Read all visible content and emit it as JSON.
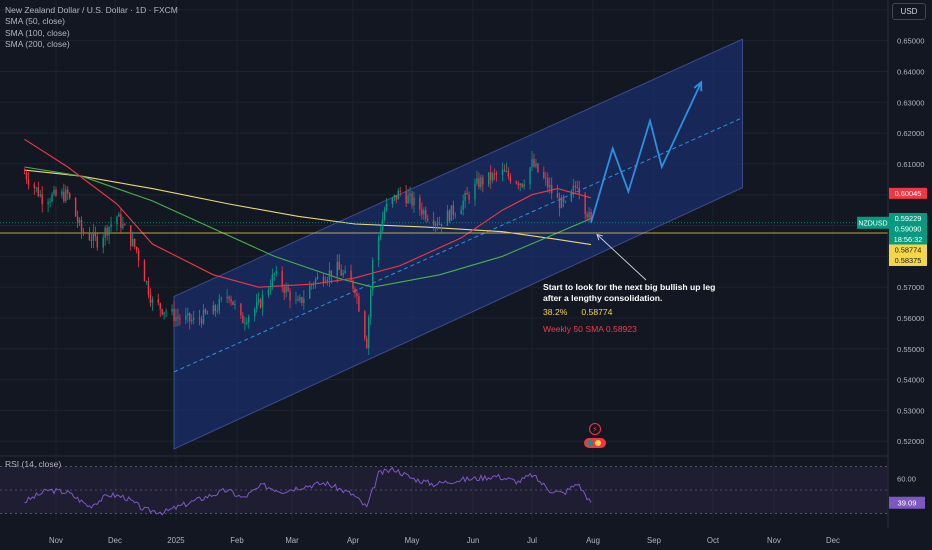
{
  "header": {
    "title": "New Zealand Dollar / U.S. Dollar · 1D · FXCM",
    "indicators": [
      "SMA (50, close)",
      "SMA (100, close)",
      "SMA (200, close)"
    ],
    "currency_button": "USD"
  },
  "rsi": {
    "label": "RSI (14, close)",
    "scale_label": "60.00",
    "value_label": "39.09"
  },
  "annotations": {
    "note_line1": "Start to look for the next big bullish up leg",
    "note_line2": "after a lengthy consolidation.",
    "fib_level": "38.2%",
    "fib_value": "0.58774",
    "weekly_sma": "Weekly 50 SMA  0.58923"
  },
  "price_tags": {
    "symbol": "NZDUSD",
    "tags": [
      {
        "text": "0.60045",
        "bg": "#f23645",
        "fg": "#ffffff",
        "price": 0.60045
      },
      {
        "text": "0.59229",
        "bg": "#089981",
        "fg": "#ffffff",
        "price": 0.59229
      },
      {
        "text": "0.59090",
        "bg": "#089981",
        "fg": "#ffffff",
        "price": 0.5909
      },
      {
        "text": "18:56:32",
        "bg": "#089981",
        "fg": "#ffffff",
        "price": 0.5889
      },
      {
        "text": "0.58774",
        "bg": "#f5d645",
        "fg": "#131722",
        "price": 0.58774
      },
      {
        "text": "0.58375",
        "bg": "#f5d645",
        "fg": "#131722",
        "price": 0.58375
      }
    ]
  },
  "colors": {
    "background": "#131722",
    "grid": "#1e222d",
    "up_candle": "#089981",
    "down_candle": "#f23645",
    "channel_fill": "#1a2f6b",
    "projection": "#2f8fe0",
    "sma50": "#f23645",
    "sma100": "#4caf50",
    "sma200": "#e8d77a",
    "rsi_line": "#7e57c2",
    "axis_text": "#b2b5be"
  },
  "chart_data": {
    "type": "candlestick",
    "symbol": "NZDUSD",
    "timeframe": "1D",
    "y_axis": {
      "ticks": [
        0.52,
        0.53,
        0.54,
        0.55,
        0.56,
        0.57,
        0.58,
        0.59,
        0.6,
        0.61,
        0.62,
        0.63,
        0.64,
        0.65,
        0.66
      ],
      "tick_labels": [
        "0.52000",
        "0.53000",
        "0.54000",
        "0.55000",
        "0.56000",
        "0.57000",
        "0.58000",
        "0.59000",
        "0.60000",
        "0.61000",
        "0.62000",
        "0.63000",
        "0.64000",
        "0.65000",
        "0.66000"
      ],
      "range": [
        0.5165,
        0.6632
      ]
    },
    "x_axis": {
      "labels": [
        "Nov",
        "Dec",
        "2025",
        "Feb",
        "Mar",
        "Apr",
        "May",
        "Jun",
        "Jul",
        "Aug",
        "Sep",
        "Oct",
        "Nov",
        "Dec"
      ]
    },
    "price_path": [
      [
        "2024-10-16",
        0.607
      ],
      [
        "2024-10-25",
        0.599
      ],
      [
        "2024-11-07",
        0.6
      ],
      [
        "2024-11-14",
        0.588
      ],
      [
        "2024-11-22",
        0.585
      ],
      [
        "2024-12-02",
        0.593
      ],
      [
        "2024-12-12",
        0.582
      ],
      [
        "2024-12-20",
        0.565
      ],
      [
        "2025-01-02",
        0.56
      ],
      [
        "2025-01-10",
        0.559
      ],
      [
        "2025-01-20",
        0.562
      ],
      [
        "2025-01-28",
        0.568
      ],
      [
        "2025-02-03",
        0.559
      ],
      [
        "2025-02-12",
        0.564
      ],
      [
        "2025-02-20",
        0.574
      ],
      [
        "2025-03-04",
        0.564
      ],
      [
        "2025-03-12",
        0.572
      ],
      [
        "2025-03-24",
        0.576
      ],
      [
        "2025-04-02",
        0.57
      ],
      [
        "2025-04-08",
        0.552
      ],
      [
        "2025-04-11",
        0.578
      ],
      [
        "2025-04-17",
        0.595
      ],
      [
        "2025-04-25",
        0.601
      ],
      [
        "2025-05-08",
        0.594
      ],
      [
        "2025-05-15",
        0.591
      ],
      [
        "2025-05-26",
        0.597
      ],
      [
        "2025-06-04",
        0.604
      ],
      [
        "2025-06-16",
        0.607
      ],
      [
        "2025-06-26",
        0.604
      ],
      [
        "2025-07-01",
        0.61
      ],
      [
        "2025-07-08",
        0.604
      ],
      [
        "2025-07-14",
        0.598
      ],
      [
        "2025-07-18",
        0.596
      ],
      [
        "2025-07-24",
        0.604
      ],
      [
        "2025-07-28",
        0.596
      ],
      [
        "2025-07-31",
        0.5909
      ]
    ],
    "sma50": [
      [
        "2024-10-16",
        0.618
      ],
      [
        "2024-11-07",
        0.609
      ],
      [
        "2024-12-02",
        0.597
      ],
      [
        "2024-12-20",
        0.584
      ],
      [
        "2025-01-20",
        0.574
      ],
      [
        "2025-02-12",
        0.57
      ],
      [
        "2025-03-12",
        0.571
      ],
      [
        "2025-04-02",
        0.573
      ],
      [
        "2025-04-25",
        0.577
      ],
      [
        "2025-05-26",
        0.586
      ],
      [
        "2025-06-16",
        0.595
      ],
      [
        "2025-07-01",
        0.6
      ],
      [
        "2025-07-14",
        0.602
      ],
      [
        "2025-07-31",
        0.599
      ]
    ],
    "sma100": [
      [
        "2024-10-16",
        0.609
      ],
      [
        "2024-11-14",
        0.606
      ],
      [
        "2024-12-20",
        0.598
      ],
      [
        "2025-01-20",
        0.589
      ],
      [
        "2025-02-20",
        0.58
      ],
      [
        "2025-03-24",
        0.573
      ],
      [
        "2025-04-11",
        0.57
      ],
      [
        "2025-05-15",
        0.574
      ],
      [
        "2025-06-16",
        0.58
      ],
      [
        "2025-07-08",
        0.586
      ],
      [
        "2025-07-31",
        0.5923
      ]
    ],
    "sma200": [
      [
        "2024-10-16",
        0.608
      ],
      [
        "2024-11-14",
        0.606
      ],
      [
        "2024-12-20",
        0.602
      ],
      [
        "2025-01-28",
        0.597
      ],
      [
        "2025-03-04",
        0.593
      ],
      [
        "2025-04-02",
        0.5905
      ],
      [
        "2025-05-08",
        0.5895
      ],
      [
        "2025-06-16",
        0.588
      ],
      [
        "2025-07-14",
        0.5855
      ],
      [
        "2025-07-31",
        0.5838
      ]
    ],
    "channel": {
      "lower_start": [
        "2024-12-31",
        0.5175
      ],
      "lower_end": [
        "2025-10-16",
        0.6023
      ],
      "upper_start": [
        "2024-12-31",
        0.567
      ],
      "upper_end": [
        "2025-10-16",
        0.6505
      ],
      "midline_start": [
        "2024-12-31",
        0.5425
      ],
      "midline_end": [
        "2025-10-16",
        0.625
      ]
    },
    "projection": [
      [
        "2025-07-31",
        0.5909
      ],
      [
        "2025-08-11",
        0.615
      ],
      [
        "2025-08-19",
        0.601
      ],
      [
        "2025-08-30",
        0.624
      ],
      [
        "2025-09-05",
        0.609
      ],
      [
        "2025-09-25",
        0.6365
      ]
    ],
    "fib_level": {
      "label": "38.2%",
      "value": 0.58774
    },
    "weekly_sma50": 0.58923,
    "rsi": {
      "ticks": [
        60.0
      ],
      "upper_band": 70,
      "lower_band": 30,
      "values": [
        [
          "2024-10-16",
          40
        ],
        [
          "2024-10-28",
          50
        ],
        [
          "2024-11-07",
          48
        ],
        [
          "2024-11-18",
          36
        ],
        [
          "2024-11-28",
          46
        ],
        [
          "2024-12-06",
          44
        ],
        [
          "2024-12-16",
          33
        ],
        [
          "2024-12-26",
          31
        ],
        [
          "2025-01-06",
          38
        ],
        [
          "2025-01-16",
          44
        ],
        [
          "2025-01-27",
          50
        ],
        [
          "2025-02-04",
          43
        ],
        [
          "2025-02-14",
          54
        ],
        [
          "2025-02-24",
          49
        ],
        [
          "2025-03-06",
          53
        ],
        [
          "2025-03-18",
          56
        ],
        [
          "2025-04-01",
          46
        ],
        [
          "2025-04-08",
          35
        ],
        [
          "2025-04-14",
          64
        ],
        [
          "2025-04-22",
          68
        ],
        [
          "2025-05-01",
          60
        ],
        [
          "2025-05-12",
          55
        ],
        [
          "2025-05-22",
          58
        ],
        [
          "2025-06-03",
          60
        ],
        [
          "2025-06-13",
          62
        ],
        [
          "2025-06-24",
          57
        ],
        [
          "2025-07-01",
          63
        ],
        [
          "2025-07-10",
          50
        ],
        [
          "2025-07-17",
          47
        ],
        [
          "2025-07-24",
          56
        ],
        [
          "2025-07-31",
          39.09
        ]
      ]
    }
  }
}
